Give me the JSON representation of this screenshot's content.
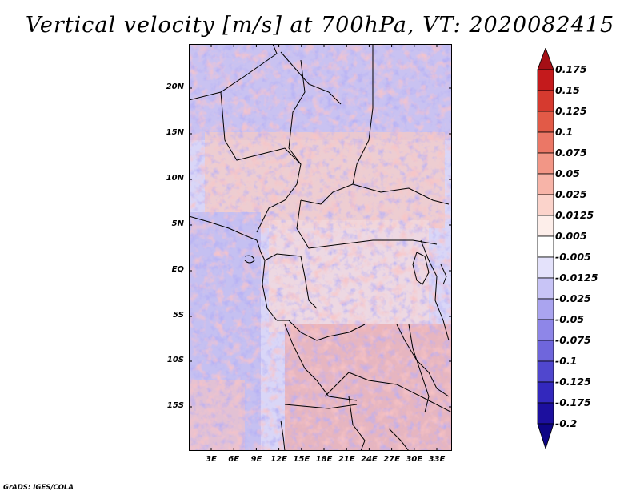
{
  "title": "Vertical velocity [m/s] at 700hPa, VT: 2020082415",
  "footer": "GrADS: IGES/COLA",
  "map": {
    "lat_labels": [
      "20N",
      "15N",
      "10N",
      "5N",
      "EQ",
      "5S",
      "10S",
      "15S"
    ],
    "lon_labels": [
      "3E",
      "6E",
      "9E",
      "12E",
      "15E",
      "18E",
      "21E",
      "24E",
      "27E",
      "30E",
      "33E"
    ]
  },
  "colorbar": {
    "labels": [
      "0.175",
      "0.15",
      "0.125",
      "0.1",
      "0.075",
      "0.05",
      "0.025",
      "0.0125",
      "0.005",
      "-0.005",
      "-0.0125",
      "-0.025",
      "-0.05",
      "-0.075",
      "-0.1",
      "-0.125",
      "-0.175",
      "-0.2"
    ],
    "colors": [
      "#a50f15",
      "#c41a1c",
      "#d63a2f",
      "#e25a47",
      "#eb7766",
      "#f29686",
      "#f7b4a8",
      "#fbd3cb",
      "#fdeeea",
      "#ffffff",
      "#e4e2fb",
      "#c8c4f6",
      "#aaa4ef",
      "#8e86e8",
      "#6f66dc",
      "#5047ce",
      "#3328bd",
      "#1c0f9e",
      "#0e0585"
    ]
  }
}
